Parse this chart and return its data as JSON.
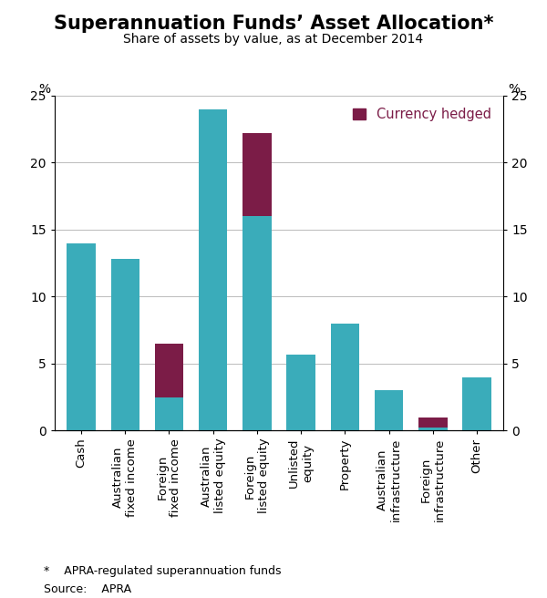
{
  "title": "Superannuation Funds’ Asset Allocation*",
  "subtitle": "Share of assets by value, as at December 2014",
  "categories": [
    "Cash",
    "Australian\nfixed income",
    "Foreign\nfixed income",
    "Australian\nlisted equity",
    "Foreign\nlisted equity",
    "Unlisted\nequity",
    "Property",
    "Australian\ninfrastructure",
    "Foreign\ninfrastructure",
    "Other"
  ],
  "teal_values": [
    14.0,
    12.8,
    2.5,
    24.0,
    16.0,
    5.7,
    8.0,
    3.0,
    0.2,
    4.0
  ],
  "purple_values": [
    0.0,
    0.0,
    4.0,
    0.0,
    6.2,
    0.0,
    0.0,
    0.0,
    0.8,
    0.0
  ],
  "teal_color": "#3AACBA",
  "purple_color": "#7B1C47",
  "ylabel": "%",
  "ylim": [
    0,
    25
  ],
  "yticks": [
    0,
    5,
    10,
    15,
    20,
    25
  ],
  "legend_label": "Currency hedged",
  "legend_color": "#7B1C47",
  "footnote": "*    APRA-regulated superannuation funds",
  "source": "Source:    APRA",
  "title_fontsize": 15,
  "subtitle_fontsize": 10,
  "axis_fontsize": 10,
  "tick_fontsize": 10,
  "background_color": "#FFFFFF",
  "grid_color": "#BBBBBB"
}
